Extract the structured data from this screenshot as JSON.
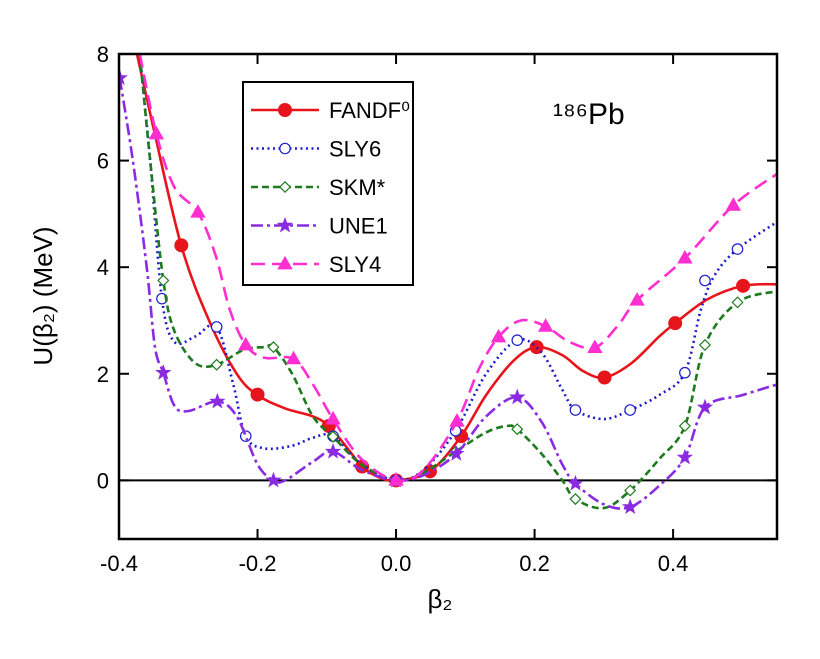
{
  "chart_data": {
    "type": "line",
    "annotation": "¹⁸⁶Pb",
    "x_label": "β₂",
    "y_label": "U(β₂) (MeV)",
    "xlim": [
      -0.4,
      0.55
    ],
    "ylim": [
      -1.1,
      8
    ],
    "xticks": [
      -0.4,
      -0.2,
      {
        "value": 0,
        "label": "0.0"
      },
      0.2,
      0.4
    ],
    "yticks": [
      0,
      2,
      4,
      6,
      8
    ],
    "reference_line": 0,
    "legend": "upper left",
    "series": [
      {
        "name": "FANDF⁰",
        "color": "#e8141c",
        "line_style": "solid",
        "marker": "filled-circle",
        "x": [
          -0.374,
          -0.35,
          -0.31,
          -0.27,
          -0.23,
          -0.2,
          -0.16,
          -0.12,
          -0.097,
          -0.07,
          -0.049,
          -0.025,
          0,
          0.049,
          0.094,
          0.13,
          0.17,
          0.203,
          0.24,
          0.27,
          0.301,
          0.34,
          0.38,
          0.403,
          0.45,
          0.501,
          0.55
        ],
        "values": [
          8,
          6.6,
          4.4,
          3.0,
          2.0,
          1.6,
          1.35,
          1.2,
          1.02,
          0.6,
          0.26,
          0.06,
          0,
          0.17,
          0.83,
          1.6,
          2.25,
          2.5,
          2.35,
          2.05,
          1.93,
          2.2,
          2.7,
          2.95,
          3.4,
          3.65,
          3.68
        ],
        "markers": {
          "x": [
            -0.31,
            -0.2,
            -0.097,
            -0.049,
            0,
            0.049,
            0.094,
            0.203,
            0.301,
            0.403,
            0.501
          ],
          "values": [
            4.41,
            1.61,
            1.02,
            0.26,
            0,
            0.17,
            0.83,
            2.5,
            1.93,
            2.95,
            3.65
          ]
        }
      },
      {
        "name": "SLY6",
        "color": "#1c1ccc",
        "line_style": "dotted",
        "marker": "open-circle",
        "x": [
          -0.37,
          -0.355,
          -0.338,
          -0.32,
          -0.29,
          -0.259,
          -0.235,
          -0.217,
          -0.19,
          -0.15,
          -0.12,
          -0.091,
          -0.05,
          0,
          0.04,
          0.086,
          0.13,
          0.175,
          0.21,
          0.24,
          0.259,
          0.3,
          0.338,
          0.38,
          0.417,
          0.44,
          0.46,
          0.493,
          0.55
        ],
        "values": [
          8,
          6,
          3.41,
          2.6,
          2.7,
          2.88,
          1.8,
          0.83,
          0.6,
          0.65,
          0.8,
          0.83,
          0.3,
          0,
          0.2,
          0.93,
          2.0,
          2.63,
          2.4,
          1.7,
          1.32,
          1.15,
          1.32,
          1.6,
          2.02,
          3.2,
          3.85,
          4.34,
          4.85
        ],
        "markers": {
          "x": [
            -0.338,
            -0.259,
            -0.217,
            -0.091,
            0,
            0.086,
            0.175,
            0.259,
            0.338,
            0.417,
            0.446,
            0.493
          ],
          "values": [
            3.41,
            2.88,
            0.83,
            0.83,
            0,
            0.93,
            2.63,
            1.32,
            1.32,
            2.02,
            3.75,
            4.34
          ]
        }
      },
      {
        "name": "SKM*",
        "color": "#1e7a1e",
        "line_style": "dashed",
        "marker": "open-diamond",
        "x": [
          -0.37,
          -0.355,
          -0.336,
          -0.32,
          -0.29,
          -0.259,
          -0.22,
          -0.19,
          -0.177,
          -0.15,
          -0.12,
          -0.091,
          -0.05,
          0,
          0.04,
          0.086,
          0.13,
          0.16,
          0.175,
          0.21,
          0.24,
          0.259,
          0.3,
          0.338,
          0.38,
          0.417,
          0.446,
          0.493,
          0.55
        ],
        "values": [
          8,
          6,
          3.75,
          2.8,
          2.2,
          2.17,
          2.45,
          2.5,
          2.5,
          2.0,
          1.2,
          0.82,
          0.3,
          0,
          0.15,
          0.54,
          0.9,
          1.02,
          0.96,
          0.5,
          0.0,
          -0.35,
          -0.52,
          -0.19,
          0.4,
          1.02,
          2.54,
          3.34,
          3.55
        ],
        "markers": {
          "x": [
            -0.336,
            -0.259,
            -0.177,
            -0.091,
            0,
            0.086,
            0.175,
            0.259,
            0.338,
            0.417,
            0.446,
            0.493
          ],
          "values": [
            3.75,
            2.17,
            2.5,
            0.82,
            0,
            0.54,
            0.96,
            -0.35,
            -0.19,
            1.02,
            2.54,
            3.34
          ]
        }
      },
      {
        "name": "UNE1",
        "color": "#8a2be2",
        "line_style": "dash-dot",
        "marker": "filled-star",
        "x": [
          -0.399,
          -0.38,
          -0.36,
          -0.348,
          -0.336,
          -0.32,
          -0.3,
          -0.258,
          -0.23,
          -0.2,
          -0.177,
          -0.16,
          -0.12,
          -0.091,
          -0.05,
          0,
          0.04,
          0.087,
          0.13,
          0.175,
          0.21,
          0.24,
          0.259,
          0.3,
          0.338,
          0.38,
          0.417,
          0.446,
          0.5,
          0.55
        ],
        "values": [
          7.55,
          6,
          4,
          2.5,
          2.02,
          1.4,
          1.3,
          1.48,
          1.2,
          0.3,
          0,
          0,
          0.35,
          0.54,
          0.2,
          0,
          0.1,
          0.5,
          1.2,
          1.56,
          1.1,
          0.3,
          -0.06,
          -0.45,
          -0.5,
          -0.1,
          0.43,
          1.37,
          1.6,
          1.8
        ],
        "markers": {
          "x": [
            -0.399,
            -0.336,
            -0.258,
            -0.177,
            -0.091,
            0,
            0.087,
            0.175,
            0.259,
            0.338,
            0.417,
            0.446
          ],
          "values": [
            7.55,
            2.02,
            1.48,
            0,
            0.54,
            0,
            0.5,
            1.56,
            -0.06,
            -0.5,
            0.43,
            1.37
          ]
        }
      },
      {
        "name": "SLY4",
        "color": "#ff2ed0",
        "line_style": "long-dash",
        "marker": "filled-triangle",
        "x": [
          -0.37,
          -0.346,
          -0.32,
          -0.286,
          -0.26,
          -0.24,
          -0.217,
          -0.19,
          -0.148,
          -0.12,
          -0.091,
          -0.05,
          0,
          0.04,
          0.088,
          0.12,
          0.148,
          0.18,
          0.216,
          0.25,
          0.287,
          0.32,
          0.348,
          0.417,
          0.487,
          0.55
        ],
        "values": [
          8,
          6.5,
          5.5,
          5.03,
          4.2,
          3.2,
          2.54,
          2.3,
          2.28,
          1.8,
          1.15,
          0.4,
          0,
          0.2,
          1.11,
          2.1,
          2.69,
          3.0,
          2.89,
          2.6,
          2.49,
          2.9,
          3.38,
          4.17,
          5.16,
          5.75
        ],
        "markers": {
          "x": [
            -0.346,
            -0.286,
            -0.217,
            -0.148,
            -0.091,
            0,
            0.088,
            0.148,
            0.216,
            0.287,
            0.348,
            0.417,
            0.487
          ],
          "values": [
            6.5,
            5.03,
            2.54,
            2.28,
            1.15,
            0,
            1.11,
            2.69,
            2.89,
            2.49,
            3.38,
            4.17,
            5.16
          ]
        }
      }
    ]
  }
}
